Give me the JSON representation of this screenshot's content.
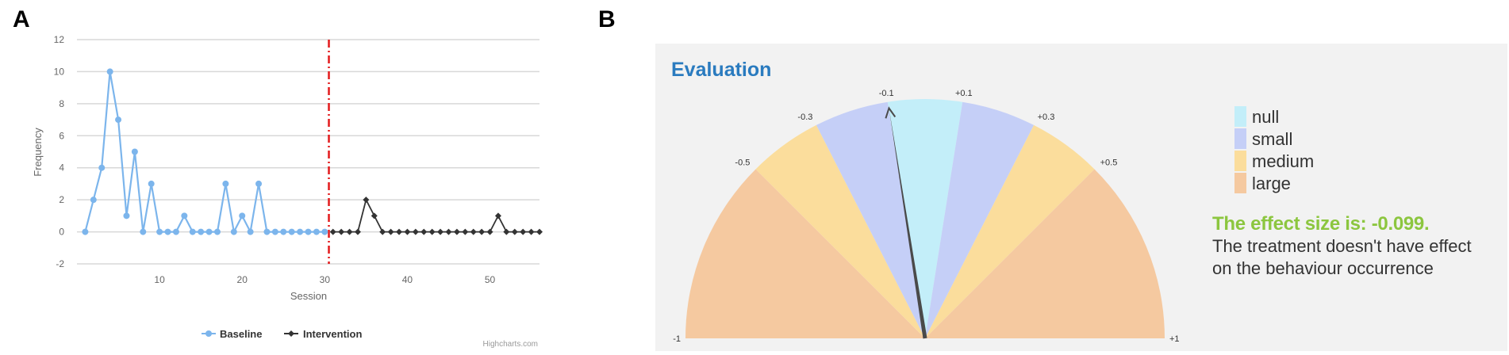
{
  "panels": {
    "a": "A",
    "b": "B"
  },
  "chart_data": [
    {
      "type": "line",
      "xlabel": "Session",
      "ylabel": "Frequency",
      "xlim": [
        0,
        56
      ],
      "ylim": [
        -2,
        12
      ],
      "y_ticks": [
        -2,
        0,
        2,
        4,
        6,
        8,
        10,
        12
      ],
      "x_ticks": [
        10,
        20,
        30,
        40,
        50
      ],
      "grid": true,
      "phase_change_x": 30.5,
      "legend_position": "bottom-center",
      "credit": "Highcharts.com",
      "series": [
        {
          "name": "Baseline",
          "color": "#7cb5ec",
          "x": [
            1,
            2,
            3,
            4,
            5,
            6,
            7,
            8,
            9,
            10,
            11,
            12,
            13,
            14,
            15,
            16,
            17,
            18,
            19,
            20,
            21,
            22,
            23,
            24,
            25,
            26,
            27,
            28,
            29,
            30
          ],
          "y": [
            0,
            2,
            4,
            10,
            7,
            1,
            5,
            0,
            3,
            0,
            0,
            0,
            1,
            0,
            0,
            0,
            0,
            3,
            0,
            1,
            0,
            3,
            0,
            0,
            0,
            0,
            0,
            0,
            0,
            0
          ]
        },
        {
          "name": "Intervention",
          "color": "#333333",
          "x": [
            31,
            32,
            33,
            34,
            35,
            36,
            37,
            38,
            39,
            40,
            41,
            42,
            43,
            44,
            45,
            46,
            47,
            48,
            49,
            50,
            51,
            52,
            53,
            54,
            55,
            56
          ],
          "y": [
            0,
            0,
            0,
            0,
            2,
            1,
            0,
            0,
            0,
            0,
            0,
            0,
            0,
            0,
            0,
            0,
            0,
            0,
            0,
            0,
            1,
            0,
            0,
            0,
            0,
            0
          ]
        }
      ]
    },
    {
      "type": "gauge",
      "title": "Evaluation",
      "range": [
        -1,
        1
      ],
      "value": -0.099,
      "tick_labels": [
        {
          "value": -1,
          "label": "-1"
        },
        {
          "value": -0.5,
          "label": "-0.5"
        },
        {
          "value": -0.3,
          "label": "-0.3"
        },
        {
          "value": -0.1,
          "label": "-0.1"
        },
        {
          "value": 0.1,
          "label": "+0.1"
        },
        {
          "value": 0.3,
          "label": "+0.3"
        },
        {
          "value": 0.5,
          "label": "+0.5"
        },
        {
          "value": 1,
          "label": "+1"
        }
      ],
      "bands": [
        {
          "from": -1,
          "to": -0.5,
          "category": "large"
        },
        {
          "from": -0.5,
          "to": -0.3,
          "category": "medium"
        },
        {
          "from": -0.3,
          "to": -0.1,
          "category": "small"
        },
        {
          "from": -0.1,
          "to": 0.1,
          "category": "null"
        },
        {
          "from": 0.1,
          "to": 0.3,
          "category": "small"
        },
        {
          "from": 0.3,
          "to": 0.5,
          "category": "medium"
        },
        {
          "from": 0.5,
          "to": 1,
          "category": "large"
        }
      ],
      "legend": [
        {
          "label": "null",
          "color": "#c3eef9"
        },
        {
          "label": "small",
          "color": "#c5cff7"
        },
        {
          "label": "medium",
          "color": "#fbdd9c"
        },
        {
          "label": "large",
          "color": "#f5c9a0"
        }
      ],
      "result_title": "The effect size is: -0.099.",
      "result_text": "The treatment doesn't have effect on the behaviour occurrence"
    }
  ]
}
